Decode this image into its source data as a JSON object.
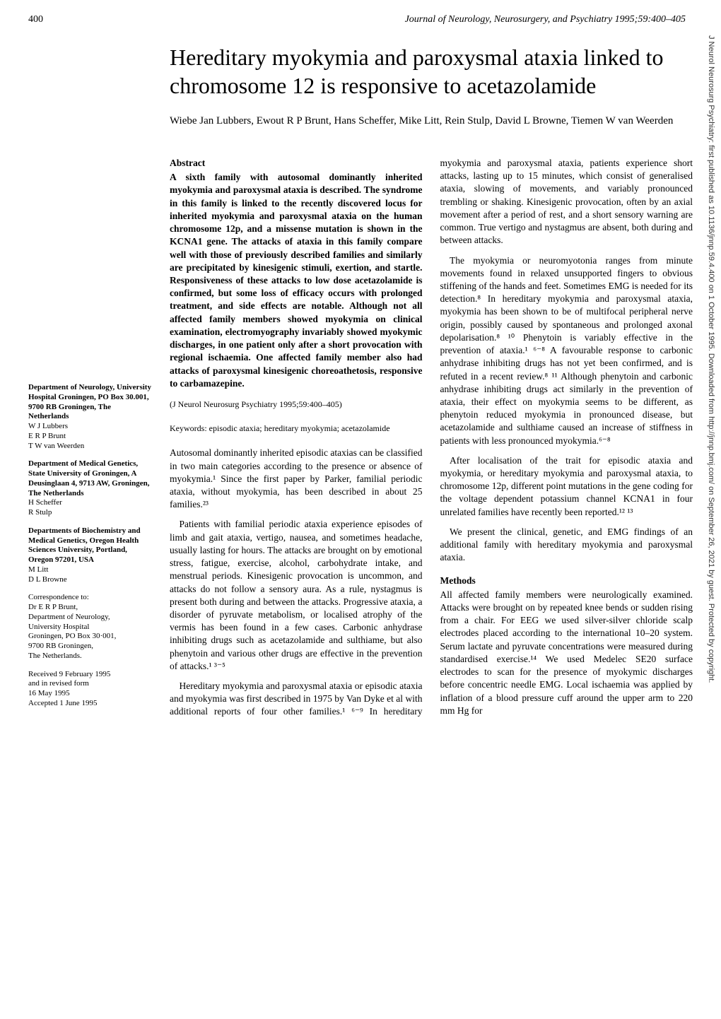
{
  "page_number": "400",
  "journal_header": "Journal of Neurology, Neurosurgery, and Psychiatry 1995;59:400–405",
  "title": "Hereditary myokymia and paroxysmal ataxia linked to chromosome 12 is responsive to acetazolamide",
  "authors": "Wiebe Jan Lubbers, Ewout R P Brunt, Hans Scheffer, Mike Litt, Rein Stulp, David L Browne, Tiemen W van Weerden",
  "abstract_heading": "Abstract",
  "abstract_text": "A sixth family with autosomal dominantly inherited myokymia and paroxysmal ataxia is described. The syndrome in this family is linked to the recently discovered locus for inherited myokymia and paroxysmal ataxia on the human chromosome 12p, and a missense mutation is shown in the KCNA1 gene. The attacks of ataxia in this family compare well with those of previously described families and similarly are precipitated by kinesigenic stimuli, exertion, and startle. Responsiveness of these attacks to low dose acetazolamide is confirmed, but some loss of efficacy occurs with prolonged treatment, and side effects are notable. Although not all affected family members showed myokymia on clinical examination, electromyography invariably showed myokymic discharges, in one patient only after a short provocation with regional ischaemia. One affected family member also had attacks of paroxysmal kinesigenic choreoathetosis, responsive to carbamazepine.",
  "citation": "(J Neurol Neurosurg Psychiatry 1995;59:400–405)",
  "keywords": "Keywords: episodic ataxia; hereditary myokymia; acetazolamide",
  "body_paragraphs": [
    "Autosomal dominantly inherited episodic ataxias can be classified in two main categories according to the presence or absence of myokymia.¹ Since the first paper by Parker, familial periodic ataxia, without myokymia, has been described in about 25 families.²³",
    "Patients with familial periodic ataxia experience episodes of limb and gait ataxia, vertigo, nausea, and sometimes headache, usually lasting for hours. The attacks are brought on by emotional stress, fatigue, exercise, alcohol, carbohydrate intake, and menstrual periods. Kinesigenic provocation is uncommon, and attacks do not follow a sensory aura. As a rule, nystagmus is present both during and between the attacks. Progressive ataxia, a disorder of pyruvate metabolism, or localised atrophy of the vermis has been found in a few cases. Carbonic anhydrase inhibiting drugs such as acetazolamide and sulthiame, but also phenytoin and various other drugs are effective in the prevention of attacks.¹ ³⁻⁵",
    "Hereditary myokymia and paroxysmal ataxia or episodic ataxia and myokymia was first described in 1975 by Van Dyke et al with additional reports of four other families.¹ ⁶⁻⁹ In hereditary myokymia and paroxysmal ataxia, patients experience short attacks, lasting up to 15 minutes, which consist of generalised ataxia, slowing of movements, and variably pronounced trembling or shaking. Kinesigenic provocation, often by an axial movement after a period of rest, and a short sensory warning are common. True vertigo and nystagmus are absent, both during and between attacks.",
    "The myokymia or neuromyotonia ranges from minute movements found in relaxed unsupported fingers to obvious stiffening of the hands and feet. Sometimes EMG is needed for its detection.⁸ In hereditary myokymia and paroxysmal ataxia, myokymia has been shown to be of multifocal peripheral nerve origin, possibly caused by spontaneous and prolonged axonal depolarisation.⁸ ¹⁰ Phenytoin is variably effective in the prevention of ataxia.¹ ⁶⁻⁸ A favourable response to carbonic anhydrase inhibiting drugs has not yet been confirmed, and is refuted in a recent review.⁸ ¹¹ Although phenytoin and carbonic anhydrase inhibiting drugs act similarly in the prevention of ataxia, their effect on myokymia seems to be different, as phenytoin reduced myokymia in pronounced disease, but acetazolamide and sulthiame caused an increase of stiffness in patients with less pronounced myokymia.⁶⁻⁸",
    "After localisation of the trait for episodic ataxia and myokymia, or hereditary myokymia and paroxysmal ataxia, to chromosome 12p, different point mutations in the gene coding for the voltage dependent potassium channel KCNA1 in four unrelated families have recently been reported.¹² ¹³",
    "We present the clinical, genetic, and EMG findings of an additional family with hereditary myokymia and paroxysmal ataxia."
  ],
  "methods_heading": "Methods",
  "methods_text": "All affected family members were neurologically examined. Attacks were brought on by repeated knee bends or sudden rising from a chair. For EEG we used silver-silver chloride scalp electrodes placed according to the international 10–20 system. Serum lactate and pyruvate concentrations were measured during standardised exercise.¹⁴ We used Medelec SE20 surface electrodes to scan for the presence of myokymic discharges before concentric needle EMG. Local ischaemia was applied by inflation of a blood pressure cuff around the upper arm to 220 mm Hg for",
  "sidebar": [
    {
      "title": "Department of Neurology, University Hospital Groningen, PO Box 30.001, 9700 RB Groningen, The Netherlands",
      "names": "W J Lubbers\nE R P Brunt\nT W van Weerden"
    },
    {
      "title": "Department of Medical Genetics, State University of Groningen, A Deusinglaan 4, 9713 AW, Groningen, The Netherlands",
      "names": "H Scheffer\nR Stulp"
    },
    {
      "title": "Departments of Biochemistry and Medical Genetics, Oregon Health Sciences University, Portland, Oregon 97201, USA",
      "names": "M Litt\nD L Browne"
    },
    {
      "title": "",
      "names": "Correspondence to:\nDr E R P Brunt,\nDepartment of Neurology,\nUniversity Hospital\nGroningen, PO Box 30·001,\n9700 RB Groningen,\nThe Netherlands."
    },
    {
      "title": "",
      "names": "Received 9 February 1995\nand in revised form\n16 May 1995\nAccepted 1 June 1995"
    }
  ],
  "vertical_text": "J Neurol Neurosurg Psychiatry: first published as 10.1136/jnnp.59.4.400 on 1 October 1995. Downloaded from http://jnnp.bmj.com/ on September 26, 2021 by guest. Protected by copyright."
}
